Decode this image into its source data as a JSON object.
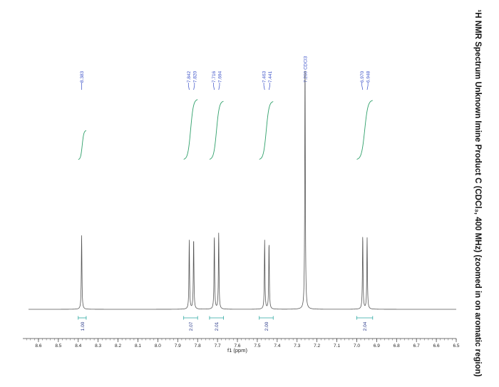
{
  "chart_data": {
    "type": "line",
    "title": "¹H NMR Spectrum Unknown Imine Product C (CDCl₃, 400 MHz) (zoomed in on aromatic region)",
    "xlabel": "f1 (ppm)",
    "xlim": [
      8.65,
      6.5
    ],
    "x_reversed": true,
    "x_ticks": [
      "8.6",
      "8.5",
      "8.4",
      "8.3",
      "8.2",
      "8.1",
      "8.0",
      "7.9",
      "7.8",
      "7.7",
      "7.6",
      "7.5",
      "7.4",
      "7.3",
      "7.2",
      "7.1",
      "7.0",
      "6.9",
      "6.8",
      "6.7",
      "6.6",
      "6.5"
    ],
    "peaks": [
      {
        "ppm": 8.383,
        "intensity": 0.3
      },
      {
        "ppm": 7.842,
        "intensity": 0.28
      },
      {
        "ppm": 7.82,
        "intensity": 0.29
      },
      {
        "ppm": 7.716,
        "intensity": 0.3
      },
      {
        "ppm": 7.694,
        "intensity": 0.31
      },
      {
        "ppm": 7.463,
        "intensity": 0.28
      },
      {
        "ppm": 7.441,
        "intensity": 0.27
      },
      {
        "ppm": 7.26,
        "intensity": 1.0
      },
      {
        "ppm": 6.97,
        "intensity": 0.3
      },
      {
        "ppm": 6.948,
        "intensity": 0.29
      }
    ],
    "peak_labels": [
      {
        "group": [
          {
            "ppm": 8.383,
            "text": "8.383"
          }
        ]
      },
      {
        "group": [
          {
            "ppm": 7.842,
            "text": "7.842"
          },
          {
            "ppm": 7.82,
            "text": "7.820"
          }
        ]
      },
      {
        "group": [
          {
            "ppm": 7.716,
            "text": "7.716"
          },
          {
            "ppm": 7.694,
            "text": "7.694"
          }
        ]
      },
      {
        "group": [
          {
            "ppm": 7.463,
            "text": "7.463"
          },
          {
            "ppm": 7.441,
            "text": "7.441"
          }
        ]
      },
      {
        "group": [
          {
            "ppm": 7.26,
            "text": "7.260 CDCl3"
          }
        ]
      },
      {
        "group": [
          {
            "ppm": 6.97,
            "text": "6.970"
          },
          {
            "ppm": 6.948,
            "text": "6.948"
          }
        ]
      }
    ],
    "integrals": [
      {
        "from": 8.4,
        "to": 8.36,
        "value": "1.00"
      },
      {
        "from": 7.87,
        "to": 7.8,
        "value": "2.07"
      },
      {
        "from": 7.74,
        "to": 7.67,
        "value": "2.01"
      },
      {
        "from": 7.49,
        "to": 7.42,
        "value": "2.00"
      },
      {
        "from": 7.0,
        "to": 6.92,
        "value": "2.04"
      }
    ]
  }
}
